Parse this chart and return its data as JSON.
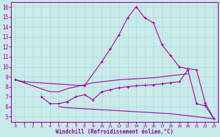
{
  "xlabel": "Windchill (Refroidissement éolien,°C)",
  "bg_color": "#c8eaea",
  "line_color": "#990099",
  "grid_color": "#b0d8d8",
  "xlim": [
    -0.5,
    23.5
  ],
  "ylim": [
    4.5,
    16.5
  ],
  "xticks": [
    0,
    1,
    2,
    3,
    4,
    5,
    6,
    7,
    8,
    9,
    10,
    11,
    12,
    13,
    14,
    15,
    16,
    17,
    18,
    19,
    20,
    21,
    22,
    23
  ],
  "yticks": [
    5,
    6,
    7,
    8,
    9,
    10,
    11,
    12,
    13,
    14,
    15,
    16
  ],
  "series": [
    {
      "x": [
        0,
        1,
        8,
        10,
        11,
        12,
        13,
        14,
        15,
        16,
        17,
        18,
        19,
        20,
        21,
        22,
        23
      ],
      "y": [
        8.7,
        8.5,
        8.1,
        10.5,
        11.8,
        13.2,
        14.9,
        16.0,
        14.9,
        14.4,
        12.2,
        11.1,
        10.0,
        9.8,
        9.7,
        6.4,
        4.8
      ],
      "marker": true
    },
    {
      "x": [
        0,
        3,
        4,
        5,
        6,
        7,
        8,
        9,
        10,
        11,
        12,
        13,
        14,
        15,
        16,
        17,
        18,
        19,
        20
      ],
      "y": [
        8.7,
        7.8,
        7.5,
        7.5,
        7.8,
        8.0,
        8.2,
        8.4,
        8.5,
        8.6,
        8.7,
        8.75,
        8.8,
        8.85,
        8.9,
        9.0,
        9.1,
        9.2,
        9.3
      ],
      "marker": false
    },
    {
      "x": [
        3,
        4,
        5,
        6,
        7,
        8,
        9,
        10,
        11,
        12,
        13,
        14,
        15,
        16,
        17,
        18,
        19,
        20,
        21,
        22,
        23
      ],
      "y": [
        7.0,
        6.3,
        6.3,
        6.5,
        7.0,
        7.2,
        6.7,
        7.5,
        7.7,
        7.9,
        8.0,
        8.1,
        8.15,
        8.2,
        8.3,
        8.4,
        8.5,
        9.7,
        6.3,
        6.1,
        4.8
      ],
      "marker": true
    },
    {
      "x": [
        5,
        6,
        7,
        8,
        9,
        10,
        11,
        12,
        13,
        14,
        15,
        16,
        17,
        18,
        19,
        20,
        21,
        22,
        23
      ],
      "y": [
        6.0,
        5.9,
        5.85,
        5.8,
        5.75,
        5.7,
        5.65,
        5.6,
        5.55,
        5.5,
        5.45,
        5.4,
        5.35,
        5.3,
        5.2,
        5.1,
        5.0,
        4.9,
        4.8
      ],
      "marker": false
    }
  ]
}
